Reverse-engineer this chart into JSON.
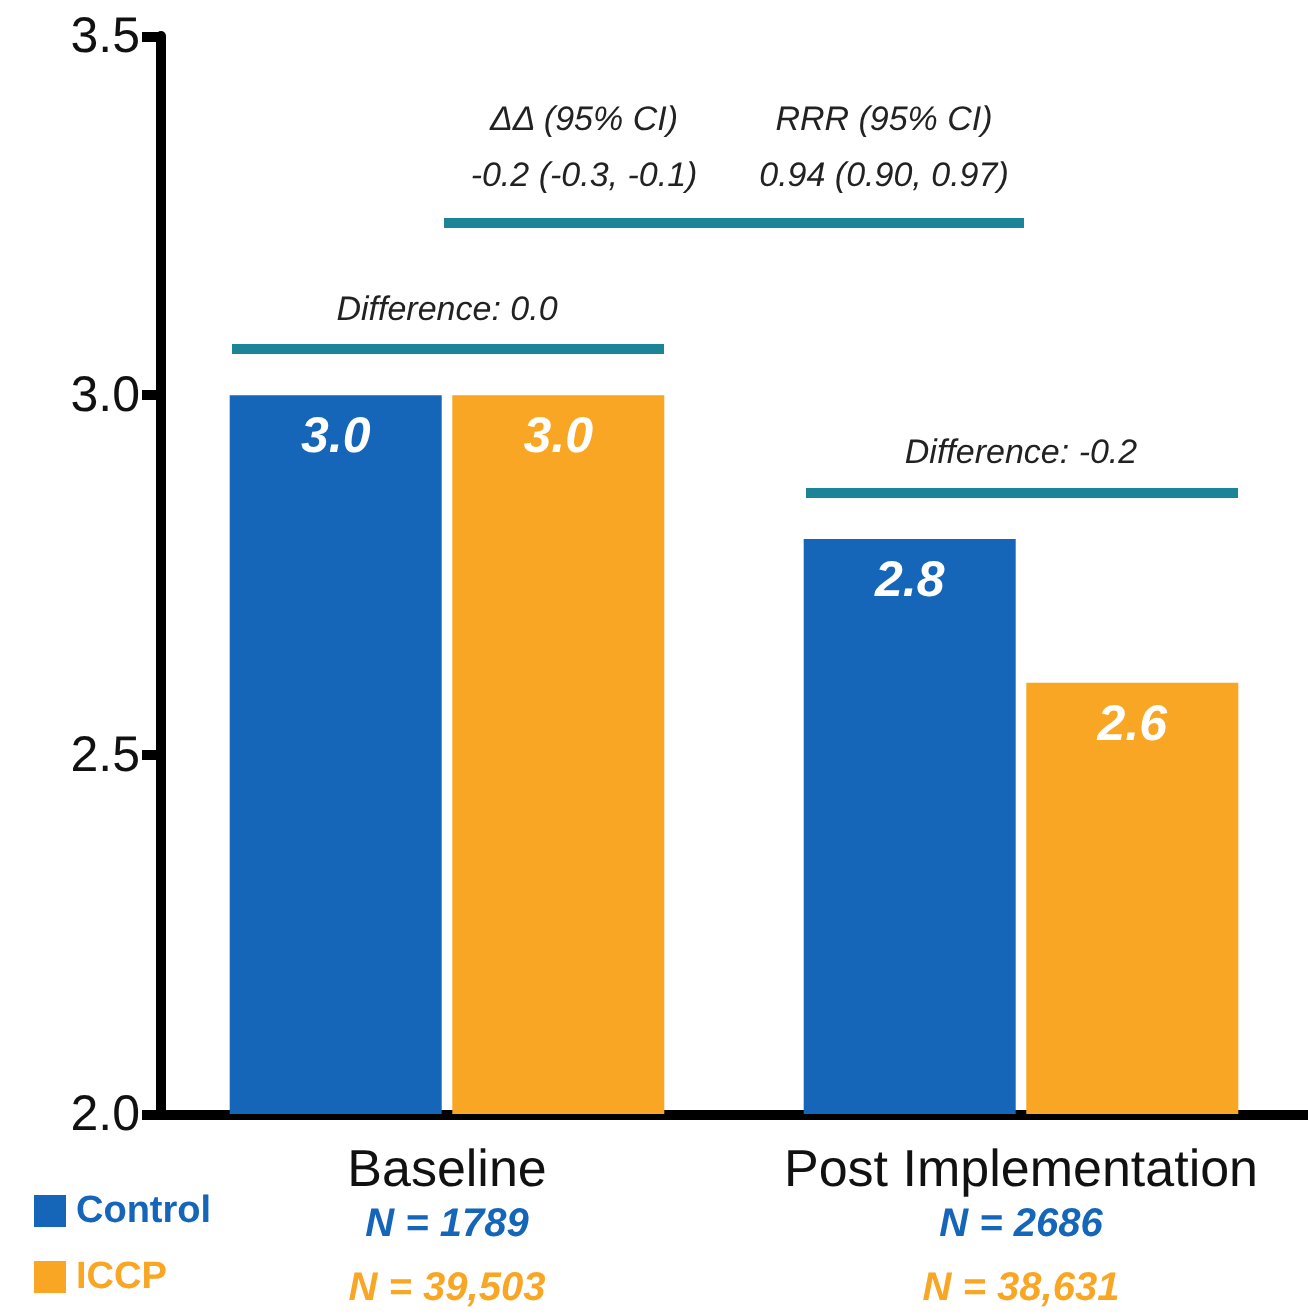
{
  "chart_data": {
    "type": "bar",
    "categories": [
      "Baseline",
      "Post Implementation"
    ],
    "series": [
      {
        "name": "Control",
        "color": "#1565b8",
        "values": [
          3.0,
          2.8
        ],
        "value_labels": [
          "3.0",
          "2.8"
        ]
      },
      {
        "name": "ICCP",
        "color": "#f8a623",
        "values": [
          3.0,
          2.6
        ],
        "value_labels": [
          "3.0",
          "2.6"
        ]
      }
    ],
    "ylim": [
      2.0,
      3.5
    ],
    "yticks": [
      {
        "value": 2,
        "label": "2.0"
      },
      {
        "value": 2.5,
        "label": "2.5"
      },
      {
        "value": 3,
        "label": "3.0"
      },
      {
        "value": 3.5,
        "label": "3.5"
      }
    ],
    "grid": false,
    "legend": "bottom left",
    "annotations": [
      "ΔΔ (95% CI)",
      "-0.2 (-0.3, -0.1)",
      "RRR (95% CI)",
      "0.94 (0.90, 0.97)",
      "Difference: 0.0",
      "Difference: -0.2",
      "N = 1789",
      "N = 39,503",
      "N = 2686",
      "N = 38,631"
    ]
  }
}
